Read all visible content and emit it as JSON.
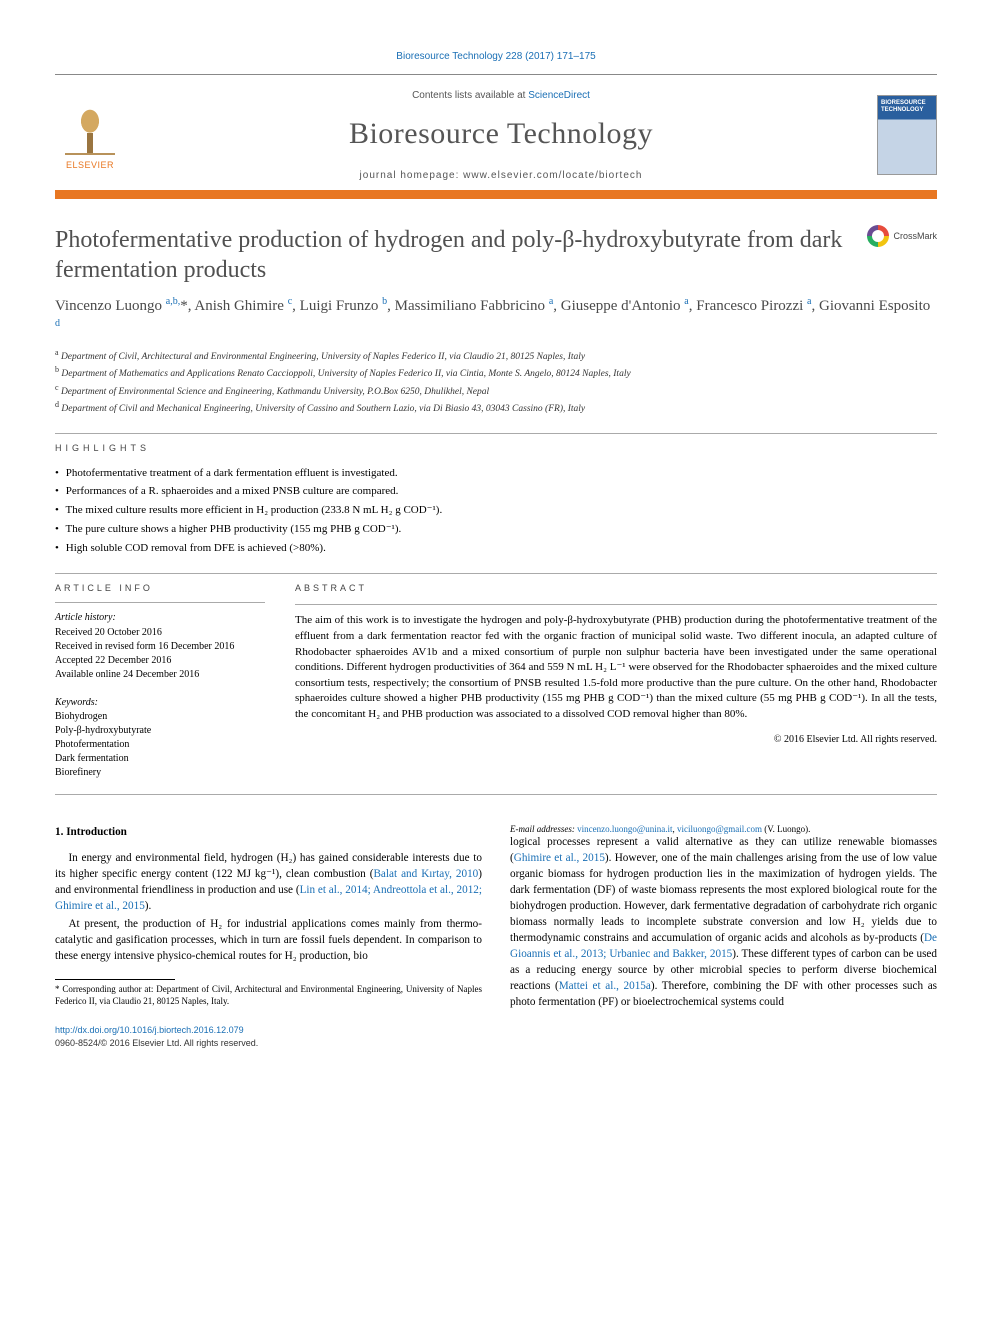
{
  "citation": "Bioresource Technology 228 (2017) 171–175",
  "publisher": {
    "name": "ELSEVIER"
  },
  "header": {
    "contents_prefix": "Contents lists available at ",
    "contents_link": "ScienceDirect",
    "journal_name": "Bioresource Technology",
    "homepage_label": "journal homepage: ",
    "homepage_url": "www.elsevier.com/locate/biortech",
    "cover_label": "BIORESOURCE TECHNOLOGY"
  },
  "title": "Photofermentative production of hydrogen and poly-β-hydroxybutyrate from dark fermentation products",
  "crossmark": "CrossMark",
  "authors_html": "Vincenzo Luongo <sup>a,b,</sup>*, Anish Ghimire <sup>c</sup>, Luigi Frunzo <sup>b</sup>, Massimiliano Fabbricino <sup>a</sup>, Giuseppe d'Antonio <sup>a</sup>, Francesco Pirozzi <sup>a</sup>, Giovanni Esposito <sup>d</sup>",
  "affiliations": [
    {
      "tag": "a",
      "text": "Department of Civil, Architectural and Environmental Engineering, University of Naples Federico II, via Claudio 21, 80125 Naples, Italy"
    },
    {
      "tag": "b",
      "text": "Department of Mathematics and Applications Renato Caccioppoli, University of Naples Federico II, via Cintia, Monte S. Angelo, 80124 Naples, Italy"
    },
    {
      "tag": "c",
      "text": "Department of Environmental Science and Engineering, Kathmandu University, P.O.Box 6250, Dhulikhel, Nepal"
    },
    {
      "tag": "d",
      "text": "Department of Civil and Mechanical Engineering, University of Cassino and Southern Lazio, via Di Biasio 43, 03043 Cassino (FR), Italy"
    }
  ],
  "highlights_label": "highlights",
  "highlights": [
    "Photofermentative treatment of a dark fermentation effluent is investigated.",
    "Performances of a R. sphaeroides and a mixed PNSB culture are compared.",
    "The mixed culture results more efficient in H₂ production (233.8 N mL H₂ g COD⁻¹).",
    "The pure culture shows a higher PHB productivity (155 mg PHB g COD⁻¹).",
    "High soluble COD removal from DFE is achieved (>80%)."
  ],
  "article_info": {
    "label": "article info",
    "history_heading": "Article history:",
    "history": [
      "Received 20 October 2016",
      "Received in revised form 16 December 2016",
      "Accepted 22 December 2016",
      "Available online 24 December 2016"
    ],
    "keywords_heading": "Keywords:",
    "keywords": [
      "Biohydrogen",
      "Poly-β-hydroxybutyrate",
      "Photofermentation",
      "Dark fermentation",
      "Biorefinery"
    ]
  },
  "abstract": {
    "label": "abstract",
    "text": "The aim of this work is to investigate the hydrogen and poly-β-hydroxybutyrate (PHB) production during the photofermentative treatment of the effluent from a dark fermentation reactor fed with the organic fraction of municipal solid waste. Two different inocula, an adapted culture of Rhodobacter sphaeroides AV1b and a mixed consortium of purple non sulphur bacteria have been investigated under the same operational conditions. Different hydrogen productivities of 364 and 559 N mL H₂ L⁻¹ were observed for the Rhodobacter sphaeroides and the mixed culture consortium tests, respectively; the consortium of PNSB resulted 1.5-fold more productive than the pure culture. On the other hand, Rhodobacter sphaeroides culture showed a higher PHB productivity (155 mg PHB g COD⁻¹) than the mixed culture (55 mg PHB g COD⁻¹). In all the tests, the concomitant H₂ and PHB production was associated to a dissolved COD removal higher than 80%.",
    "copyright": "© 2016 Elsevier Ltd. All rights reserved."
  },
  "intro": {
    "heading": "1. Introduction",
    "p1_pre": "In energy and environmental field, hydrogen (H₂) has gained considerable interests due to its higher specific energy content (122 MJ kg⁻¹), clean combustion (",
    "p1_link1": "Balat and Kırtay, 2010",
    "p1_mid": ") and environmental friendliness in production and use (",
    "p1_link2": "Lin et al., 2014; Andreottola et al., 2012; Ghimire et al., 2015",
    "p1_post": ").",
    "p2": "At present, the production of H₂ for industrial applications comes mainly from thermo-catalytic and gasification processes, which in turn are fossil fuels dependent. In comparison to these energy intensive physico-chemical routes for H₂ production, bio",
    "p3_pre": "logical processes represent a valid alternative as they can utilize renewable biomasses (",
    "p3_link1": "Ghimire et al., 2015",
    "p3_mid1": "). However, one of the main challenges arising from the use of low value organic biomass for hydrogen production lies in the maximization of hydrogen yields. The dark fermentation (DF) of waste biomass represents the most explored biological route for the biohydrogen production. However, dark fermentative degradation of carbohydrate rich organic biomass normally leads to incomplete substrate conversion and low H₂ yields due to thermodynamic constrains and accumulation of organic acids and alcohols as by-products (",
    "p3_link2": "De Gioannis et al., 2013; Urbaniec and Bakker, 2015",
    "p3_mid2": "). These different types of carbon can be used as a reducing energy source by other microbial species to perform diverse biochemical reactions (",
    "p3_link3": "Mattei et al., 2015a",
    "p3_post": "). Therefore, combining the DF with other processes such as photo fermentation (PF) or bioelectrochemical systems could"
  },
  "footnotes": {
    "corr": "* Corresponding author at: Department of Civil, Architectural and Environmental Engineering, University of Naples Federico II, via Claudio 21, 80125 Naples, Italy.",
    "email_label": "E-mail addresses: ",
    "email1": "vincenzo.luongo@unina.it",
    "email2": "viciluongo@gmail.com",
    "email_suffix": " (V. Luongo)."
  },
  "footer": {
    "doi_prefix": "http://dx.doi.org/",
    "doi": "10.1016/j.biortech.2016.12.079",
    "issn": "0960-8524/© 2016 Elsevier Ltd. All rights reserved."
  },
  "colors": {
    "accent_orange": "#e87722",
    "link_blue": "#1a6fb5",
    "gray_text": "#505050"
  }
}
